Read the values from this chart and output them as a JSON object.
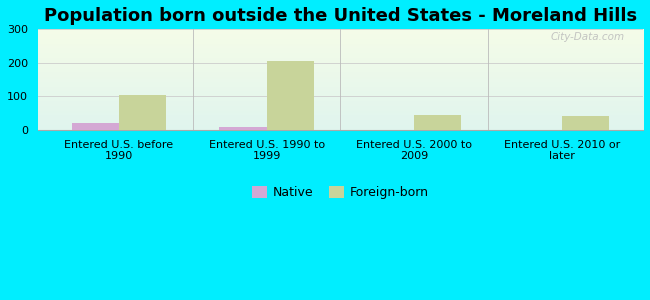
{
  "title": "Population born outside the United States - Moreland Hills",
  "categories": [
    "Entered U.S. before\n1990",
    "Entered U.S. 1990 to\n1999",
    "Entered U.S. 2000 to\n2009",
    "Entered U.S. 2010 or\nlater"
  ],
  "native_values": [
    20,
    10,
    0,
    0
  ],
  "foreign_values": [
    105,
    205,
    45,
    40
  ],
  "native_color": "#d4a8d4",
  "foreign_color": "#c8d49a",
  "ylim": [
    0,
    300
  ],
  "yticks": [
    0,
    100,
    200,
    300
  ],
  "background_outer": "#00eeff",
  "grad_top": "#f5fce8",
  "grad_bottom": "#e0f5ee",
  "bar_width": 0.32,
  "title_fontsize": 13,
  "tick_fontsize": 8,
  "legend_native": "Native",
  "legend_foreign": "Foreign-born",
  "watermark": "City-Data.com",
  "grid_color": "#cccccc",
  "separator_color": "#bbbbbb"
}
